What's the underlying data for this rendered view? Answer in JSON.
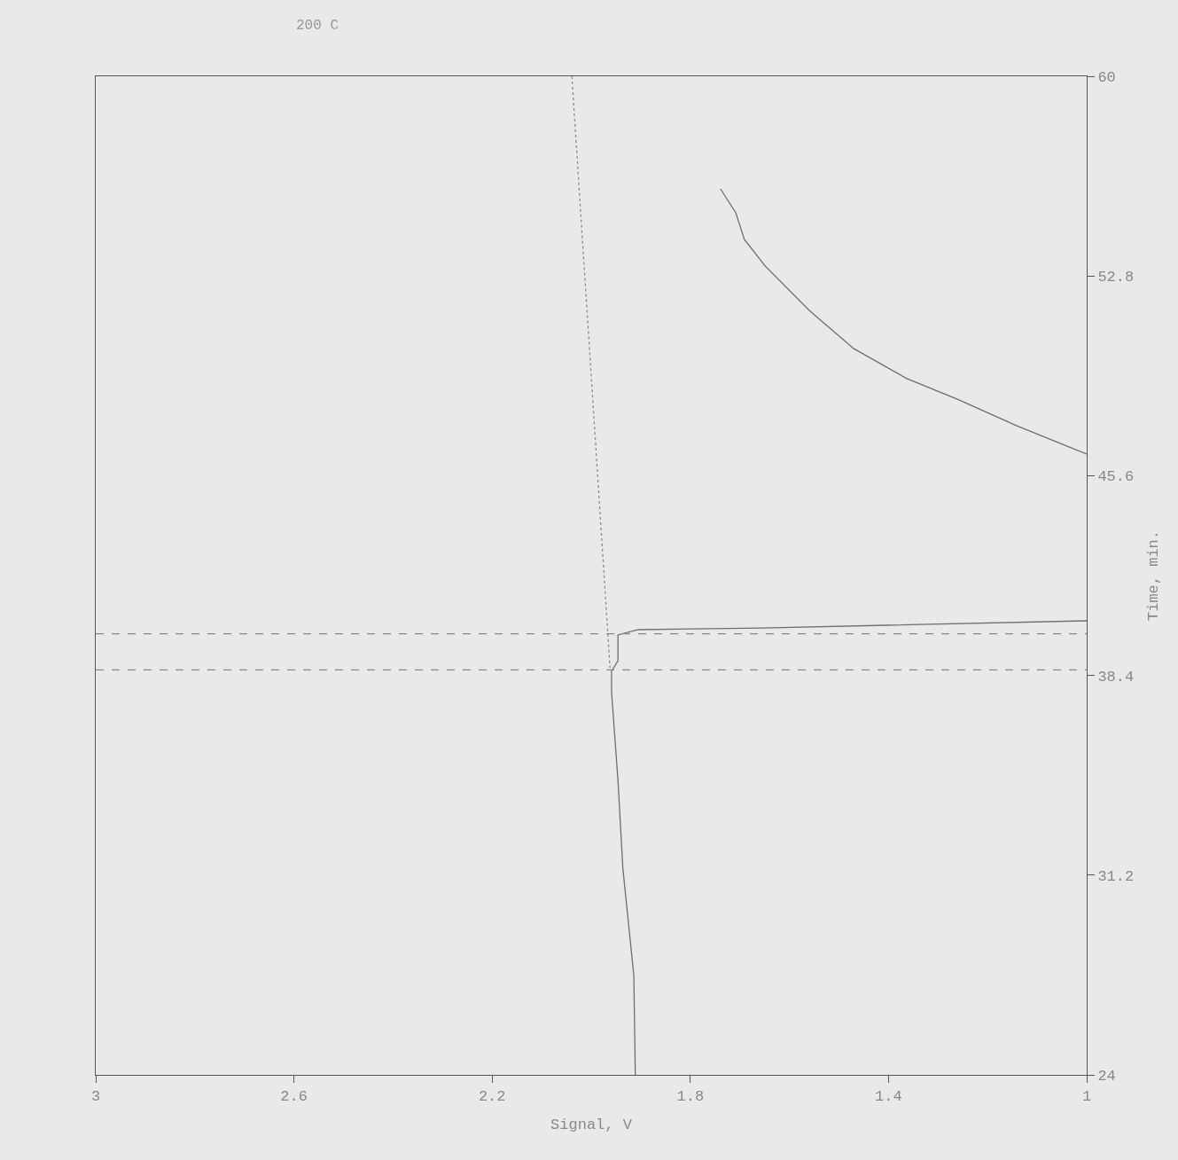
{
  "chart_data": {
    "type": "line",
    "xlabel": "Signal, V",
    "ylabel": "Time, min.",
    "annotations": [
      "200 C"
    ],
    "xlim": [
      3,
      1
    ],
    "xticks": [
      3,
      2.6,
      2.2,
      1.8,
      1.4,
      1
    ],
    "ylim": [
      24,
      60
    ],
    "yticks": [
      24,
      31.2,
      38.4,
      45.6,
      52.8,
      60
    ],
    "grid": false,
    "marker": "none",
    "series": [
      {
        "color": "#6e6e6e",
        "line_style": "solid",
        "x": [
          1.911,
          1.914,
          1.936,
          1.946,
          1.959,
          1.959,
          1.946,
          1.946,
          1.905,
          1.655,
          1.404,
          1.0,
          null,
          1.0,
          1.141,
          1.261,
          1.363,
          1.47,
          1.56,
          1.649,
          1.691,
          1.708,
          1.739
        ],
        "values": [
          24.0,
          27.58,
          31.42,
          34.61,
          37.81,
          38.55,
          38.93,
          39.86,
          40.05,
          40.11,
          40.21,
          40.37,
          null,
          46.38,
          47.4,
          48.36,
          49.1,
          50.18,
          51.56,
          53.16,
          54.12,
          55.07,
          55.94
        ]
      },
      {
        "color": "#8a8a8a",
        "line_style": "dotted",
        "x": [
          2.039,
          1.962
        ],
        "values": [
          60.0,
          38.67
        ]
      }
    ],
    "ref_lines": [
      {
        "axis": "y",
        "value": 39.9,
        "color": "#8a8a8a",
        "line_style": "dashed"
      },
      {
        "axis": "y",
        "value": 38.6,
        "color": "#8a8a8a",
        "line_style": "dashed"
      }
    ]
  }
}
